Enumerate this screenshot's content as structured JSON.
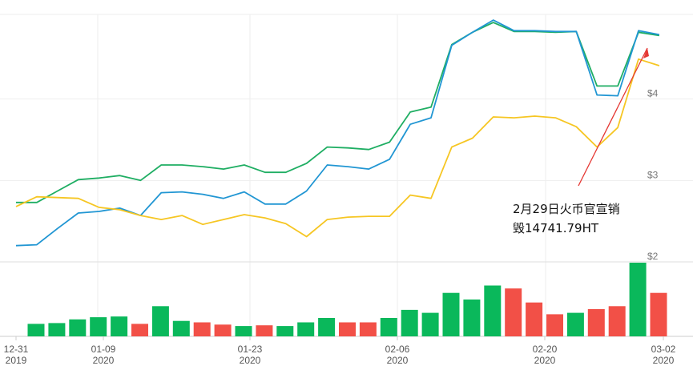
{
  "chart_data": [
    {
      "type": "line",
      "ylim": [
        2.0,
        5.0
      ],
      "yticks": [
        {
          "value": 2,
          "label": "$2"
        },
        {
          "value": 3,
          "label": "$3"
        },
        {
          "value": 4,
          "label": "$4"
        }
      ],
      "series": [
        {
          "color": "#1fae63",
          "values": [
            2.73,
            2.73,
            2.87,
            3.01,
            3.03,
            3.06,
            3.0,
            3.19,
            3.19,
            3.17,
            3.14,
            3.19,
            3.1,
            3.1,
            3.21,
            3.41,
            3.4,
            3.38,
            3.47,
            3.84,
            3.9,
            4.67,
            4.82,
            4.94,
            4.83,
            4.83,
            4.82,
            4.83,
            4.16,
            4.16,
            4.82,
            4.78
          ]
        },
        {
          "color": "#2196d3",
          "values": [
            2.2,
            2.21,
            2.41,
            2.6,
            2.62,
            2.66,
            2.57,
            2.85,
            2.86,
            2.83,
            2.78,
            2.86,
            2.71,
            2.71,
            2.87,
            3.19,
            3.17,
            3.14,
            3.26,
            3.69,
            3.77,
            4.66,
            4.82,
            4.97,
            4.84,
            4.84,
            4.83,
            4.83,
            4.05,
            4.04,
            4.84,
            4.79
          ]
        },
        {
          "color": "#f6c623",
          "values": [
            2.68,
            2.8,
            2.79,
            2.78,
            2.67,
            2.64,
            2.57,
            2.52,
            2.57,
            2.46,
            2.52,
            2.58,
            2.54,
            2.47,
            2.31,
            2.52,
            2.55,
            2.56,
            2.56,
            2.82,
            2.78,
            3.41,
            3.52,
            3.78,
            3.77,
            3.79,
            3.77,
            3.66,
            3.41,
            3.65,
            4.49,
            4.41
          ]
        }
      ]
    },
    {
      "type": "bar",
      "series": [
        {
          "name": "volume",
          "values": [
            0.17,
            0.18,
            0.23,
            0.26,
            0.27,
            0.17,
            0.41,
            0.21,
            0.19,
            0.16,
            0.14,
            0.15,
            0.14,
            0.19,
            0.25,
            0.19,
            0.19,
            0.25,
            0.36,
            0.32,
            0.59,
            0.5,
            0.69,
            0.65,
            0.46,
            0.3,
            0.32,
            0.37,
            0.41,
            1.0,
            0.59
          ]
        },
        {
          "name": "direction",
          "values": [
            "up",
            "up",
            "up",
            "up",
            "up",
            "down",
            "up",
            "up",
            "down",
            "down",
            "up",
            "down",
            "up",
            "up",
            "up",
            "down",
            "down",
            "up",
            "up",
            "up",
            "up",
            "up",
            "up",
            "down",
            "down",
            "down",
            "up",
            "down",
            "down",
            "up",
            "down"
          ]
        }
      ],
      "colors": {
        "up": "#0ab85b",
        "down": "#f25047"
      }
    }
  ],
  "x_axis": {
    "ticks": [
      {
        "top": "12-31",
        "bottom": "2019"
      },
      {
        "top": "01-09",
        "bottom": "2020"
      },
      {
        "top": "01-23",
        "bottom": "2020"
      },
      {
        "top": "02-06",
        "bottom": "2020"
      },
      {
        "top": "02-20",
        "bottom": "2020"
      },
      {
        "top": "03-02",
        "bottom": "2020"
      }
    ]
  },
  "annotation": {
    "line1": "2月29日火币官宣销",
    "line2": "毁14741.79HT",
    "arrow_color": "#e53935"
  }
}
